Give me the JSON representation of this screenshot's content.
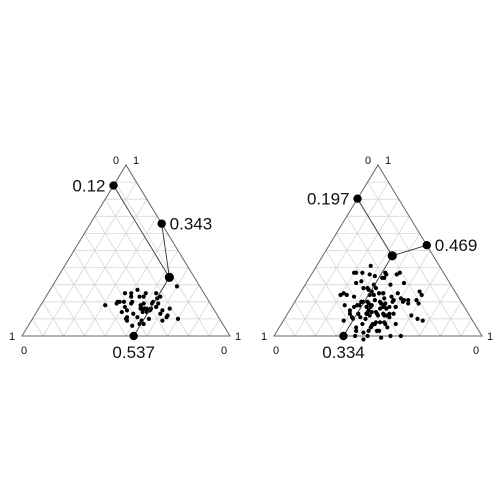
{
  "chart_data": [
    {
      "type": "scatter",
      "subtype": "ternary",
      "title": "",
      "corner_labels": [
        "0",
        "1",
        "1",
        "0",
        "0",
        "1"
      ],
      "grid": true,
      "mean": {
        "top": 0.12,
        "right": 0.343,
        "bottom": 0.537
      },
      "mean_labels": {
        "top": "0.12",
        "right": "0.343",
        "bottom": "0.537"
      },
      "points": [
        [
          0.2,
          0.7
        ],
        [
          0.34,
          0.56
        ],
        [
          0.38,
          0.55
        ],
        [
          0.25,
          0.64
        ],
        [
          0.44,
          0.5
        ],
        [
          0.24,
          0.64
        ],
        [
          0.3,
          0.54
        ],
        [
          0.28,
          0.63
        ],
        [
          0.4,
          0.53
        ],
        [
          0.27,
          0.6
        ],
        [
          0.38,
          0.53
        ],
        [
          0.33,
          0.53
        ],
        [
          0.27,
          0.56
        ],
        [
          0.21,
          0.63
        ],
        [
          0.4,
          0.47
        ],
        [
          0.45,
          0.45
        ],
        [
          0.25,
          0.6
        ],
        [
          0.44,
          0.45
        ],
        [
          0.31,
          0.54
        ],
        [
          0.24,
          0.54
        ],
        [
          0.35,
          0.49
        ],
        [
          0.34,
          0.5
        ],
        [
          0.28,
          0.47
        ],
        [
          0.25,
          0.56
        ],
        [
          0.45,
          0.41
        ],
        [
          0.33,
          0.51
        ],
        [
          0.42,
          0.43
        ],
        [
          0.3,
          0.47
        ],
        [
          0.32,
          0.52
        ],
        [
          0.45,
          0.36
        ],
        [
          0.34,
          0.48
        ],
        [
          0.42,
          0.41
        ],
        [
          0.35,
          0.4
        ],
        [
          0.38,
          0.43
        ],
        [
          0.22,
          0.55
        ],
        [
          0.28,
          0.53
        ],
        [
          0.23,
          0.52
        ],
        [
          0.44,
          0.36
        ],
        [
          0.35,
          0.51
        ],
        [
          0.41,
          0.39
        ],
        [
          0.27,
          0.56
        ],
        [
          0.32,
          0.49
        ],
        [
          0.32,
          0.45
        ],
        [
          0.37,
          0.43
        ],
        [
          0.38,
          0.37
        ],
        [
          0.43,
          0.37
        ],
        [
          0.36,
          0.41
        ],
        [
          0.51,
          0.31
        ],
        [
          0.27,
          0.53
        ],
        [
          0.31,
          0.42
        ],
        [
          0.11,
          0.6
        ],
        [
          0.45,
          0.46
        ],
        [
          0.39,
          0.5
        ]
      ]
    },
    {
      "type": "scatter",
      "subtype": "ternary",
      "title": "",
      "corner_labels": [
        "0",
        "1",
        "1",
        "0",
        "0",
        "1"
      ],
      "grid": true,
      "mean": {
        "top": 0.197,
        "right": 0.469,
        "bottom": 0.334
      },
      "mean_labels": {
        "top": "0.197",
        "right": "0.469",
        "bottom": "0.334"
      },
      "points": [
        [
          0.43,
          0.2
        ],
        [
          0.42,
          0.21
        ],
        [
          0.39,
          0.24
        ],
        [
          0.33,
          0.26
        ],
        [
          0.45,
          0.24
        ],
        [
          0.36,
          0.28
        ],
        [
          0.42,
          0.26
        ],
        [
          0.56,
          0.2
        ],
        [
          0.37,
          0.35
        ],
        [
          0.43,
          0.29
        ],
        [
          0.53,
          0.23
        ],
        [
          0.28,
          0.35
        ],
        [
          0.31,
          0.35
        ],
        [
          0.5,
          0.27
        ],
        [
          0.54,
          0.21
        ],
        [
          0.47,
          0.33
        ],
        [
          0.5,
          0.32
        ],
        [
          0.41,
          0.31
        ],
        [
          0.3,
          0.36
        ],
        [
          0.34,
          0.31
        ],
        [
          0.37,
          0.33
        ],
        [
          0.62,
          0.29
        ],
        [
          0.21,
          0.42
        ],
        [
          0.42,
          0.34
        ],
        [
          0.53,
          0.3
        ],
        [
          0.47,
          0.36
        ],
        [
          0.4,
          0.34
        ],
        [
          0.56,
          0.29
        ],
        [
          0.37,
          0.38
        ],
        [
          0.41,
          0.32
        ],
        [
          0.45,
          0.35
        ],
        [
          0.57,
          0.3
        ],
        [
          0.23,
          0.41
        ],
        [
          0.28,
          0.36
        ],
        [
          0.45,
          0.36
        ],
        [
          0.4,
          0.36
        ],
        [
          0.47,
          0.38
        ],
        [
          0.35,
          0.4
        ],
        [
          0.32,
          0.45
        ],
        [
          0.37,
          0.38
        ],
        [
          0.51,
          0.31
        ],
        [
          0.48,
          0.32
        ],
        [
          0.45,
          0.38
        ],
        [
          0.29,
          0.41
        ],
        [
          0.22,
          0.47
        ],
        [
          0.57,
          0.25
        ],
        [
          0.47,
          0.36
        ],
        [
          0.36,
          0.42
        ],
        [
          0.39,
          0.41
        ],
        [
          0.57,
          0.33
        ],
        [
          0.41,
          0.38
        ],
        [
          0.37,
          0.44
        ],
        [
          0.57,
          0.32
        ],
        [
          0.48,
          0.32
        ],
        [
          0.53,
          0.36
        ],
        [
          0.41,
          0.43
        ],
        [
          0.35,
          0.4
        ],
        [
          0.44,
          0.38
        ],
        [
          0.32,
          0.47
        ],
        [
          0.38,
          0.44
        ],
        [
          0.49,
          0.38
        ],
        [
          0.28,
          0.47
        ],
        [
          0.53,
          0.34
        ],
        [
          0.44,
          0.43
        ],
        [
          0.48,
          0.38
        ],
        [
          0.33,
          0.47
        ],
        [
          0.39,
          0.42
        ],
        [
          0.44,
          0.42
        ],
        [
          0.46,
          0.4
        ],
        [
          0.39,
          0.44
        ],
        [
          0.28,
          0.52
        ],
        [
          0.38,
          0.49
        ],
        [
          0.44,
          0.44
        ],
        [
          0.32,
          0.47
        ],
        [
          0.53,
          0.34
        ],
        [
          0.38,
          0.46
        ],
        [
          0.49,
          0.38
        ],
        [
          0.36,
          0.47
        ],
        [
          0.33,
          0.5
        ],
        [
          0.48,
          0.4
        ],
        [
          0.4,
          0.48
        ],
        [
          0.27,
          0.52
        ],
        [
          0.51,
          0.39
        ],
        [
          0.41,
          0.46
        ],
        [
          0.47,
          0.45
        ],
        [
          0.25,
          0.54
        ],
        [
          0.54,
          0.39
        ],
        [
          0.28,
          0.5
        ],
        [
          0.33,
          0.5
        ],
        [
          0.39,
          0.5
        ],
        [
          0.58,
          0.37
        ],
        [
          0.45,
          0.47
        ],
        [
          0.49,
          0.44
        ],
        [
          0.43,
          0.49
        ],
        [
          0.26,
          0.55
        ],
        [
          0.36,
          0.51
        ],
        [
          0.21,
          0.58
        ],
        [
          0.48,
          0.45
        ],
        [
          0.41,
          0.47
        ],
        [
          0.17,
          0.57
        ],
        [
          0.59,
          0.38
        ],
        [
          0.51,
          0.44
        ],
        [
          0.66,
          0.34
        ],
        [
          0.5,
          0.44
        ],
        [
          0.53,
          0.44
        ],
        [
          0.21,
          0.6
        ],
        [
          0.43,
          0.5
        ],
        [
          0.17,
          0.59
        ],
        [
          0.56,
          0.42
        ],
        [
          0.61,
          0.39
        ],
        [
          0.38,
          0.55
        ],
        [
          0.55,
          0.45
        ],
        [
          0.49,
          0.48
        ],
        [
          0.43,
          0.52
        ],
        [
          0.58,
          0.44
        ],
        [
          0.48,
          0.49
        ],
        [
          0.28,
          0.6
        ],
        [
          0.49,
          0.52
        ],
        [
          0.26,
          0.64
        ],
        [
          0.44,
          0.56
        ],
        [
          0.24,
          0.67
        ],
        [
          0.39,
          0.61
        ]
      ]
    }
  ]
}
